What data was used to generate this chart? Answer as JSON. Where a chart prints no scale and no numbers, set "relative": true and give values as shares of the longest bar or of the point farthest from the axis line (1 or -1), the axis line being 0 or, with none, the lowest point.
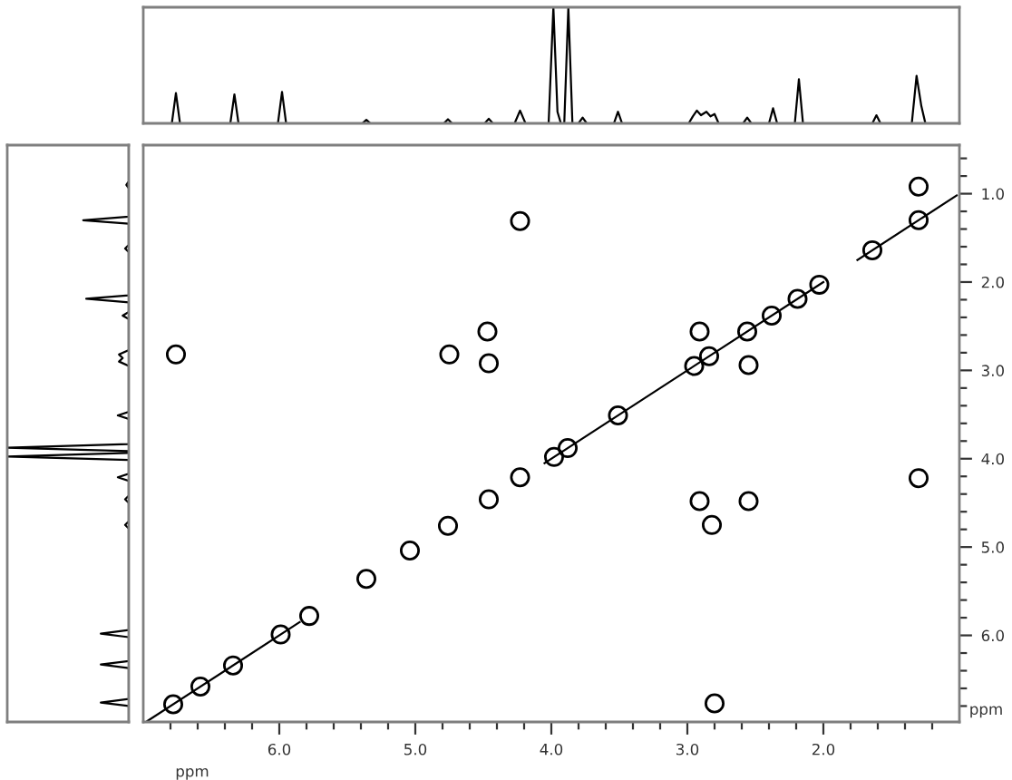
{
  "chart_data": [
    {
      "type": "line",
      "relative": true,
      "xlim": [
        7.0,
        1.0
      ],
      "tick_labels": false,
      "series": [
        {
          "color": "#000000",
          "x": [
            7.0,
            6.79,
            6.76,
            6.73,
            6.36,
            6.33,
            6.3,
            6.01,
            5.98,
            5.95,
            5.39,
            5.36,
            5.33,
            4.79,
            4.76,
            4.73,
            4.49,
            4.46,
            4.43,
            4.27,
            4.23,
            4.19,
            4.02,
            3.985,
            3.955,
            3.93,
            3.905,
            3.875,
            3.845,
            3.8,
            3.77,
            3.74,
            3.54,
            3.51,
            3.48,
            2.99,
            2.96,
            2.93,
            2.9,
            2.86,
            2.83,
            2.8,
            2.77,
            2.59,
            2.56,
            2.53,
            2.4,
            2.37,
            2.34,
            2.21,
            2.18,
            2.15,
            1.64,
            1.61,
            1.58,
            1.35,
            1.315,
            1.28,
            1.25,
            1.0
          ],
          "values": [
            0,
            0,
            0.26,
            0,
            0,
            0.25,
            0,
            0,
            0.27,
            0,
            0,
            0.03,
            0,
            0,
            0.035,
            0,
            0,
            0.04,
            0,
            0,
            0.11,
            0,
            0,
            1,
            0.1,
            0,
            0,
            1,
            0,
            0,
            0.05,
            0,
            0,
            0.1,
            0,
            0,
            0.06,
            0.11,
            0.07,
            0.1,
            0.06,
            0.08,
            0,
            0,
            0.05,
            0,
            0,
            0.13,
            0,
            0,
            0.38,
            0,
            0,
            0.07,
            0,
            0,
            0.41,
            0.15,
            0,
            0
          ]
        }
      ]
    },
    {
      "type": "line",
      "orientation": "horizontal",
      "relative": true,
      "ylim": [
        6.98,
        0.45
      ],
      "tick_labels": false,
      "series": [
        {
          "color": "#000000",
          "x": [
            0.45,
            0.86,
            0.9,
            0.94,
            1.26,
            1.3,
            1.34,
            1.58,
            1.62,
            1.66,
            2.15,
            2.19,
            2.23,
            2.34,
            2.38,
            2.42,
            2.77,
            2.82,
            2.86,
            2.9,
            2.95,
            3.47,
            3.51,
            3.55,
            3.835,
            3.875,
            3.915,
            3.935,
            3.975,
            4.015,
            4.17,
            4.21,
            4.25,
            4.42,
            4.46,
            4.5,
            4.71,
            4.75,
            4.79,
            5.94,
            5.98,
            6.02,
            6.29,
            6.33,
            6.37,
            6.72,
            6.76,
            6.8,
            6.98
          ],
          "values": [
            0,
            0,
            -0.02,
            0,
            0,
            -0.375,
            0,
            0,
            -0.03,
            0,
            0,
            -0.35,
            0,
            0,
            -0.05,
            0,
            0,
            -0.08,
            -0.05,
            -0.08,
            0,
            0,
            -0.09,
            0,
            0,
            -1,
            0,
            0,
            -1,
            0,
            0,
            -0.09,
            0,
            0,
            -0.03,
            0,
            0,
            -0.03,
            0,
            0,
            -0.23,
            0,
            0,
            -0.23,
            0,
            0,
            -0.23,
            0,
            0
          ]
        }
      ]
    },
    {
      "type": "scatter",
      "xlim": [
        7.0,
        1.0
      ],
      "ylim": [
        6.98,
        0.45
      ],
      "xlabel": "ppm",
      "ylabel": "ppm",
      "xticks": [
        {
          "value": 6.8,
          "label": null
        },
        {
          "value": 6.6,
          "label": null
        },
        {
          "value": 6.4,
          "label": null
        },
        {
          "value": 6.2,
          "label": null
        },
        {
          "value": 6,
          "label": "6.0"
        },
        {
          "value": 5.8,
          "label": null
        },
        {
          "value": 5.6,
          "label": null
        },
        {
          "value": 5.4,
          "label": null
        },
        {
          "value": 5.2,
          "label": null
        },
        {
          "value": 5,
          "label": "5.0"
        },
        {
          "value": 4.8,
          "label": null
        },
        {
          "value": 4.6,
          "label": null
        },
        {
          "value": 4.4,
          "label": null
        },
        {
          "value": 4.2,
          "label": null
        },
        {
          "value": 4,
          "label": "4.0"
        },
        {
          "value": 3.8,
          "label": null
        },
        {
          "value": 3.6,
          "label": null
        },
        {
          "value": 3.4,
          "label": null
        },
        {
          "value": 3.2,
          "label": null
        },
        {
          "value": 3,
          "label": "3.0"
        },
        {
          "value": 2.8,
          "label": null
        },
        {
          "value": 2.6,
          "label": null
        },
        {
          "value": 2.4,
          "label": null
        },
        {
          "value": 2.2,
          "label": null
        },
        {
          "value": 2,
          "label": "2.0"
        },
        {
          "value": 1.8,
          "label": null
        },
        {
          "value": 1.6,
          "label": null
        },
        {
          "value": 1.4,
          "label": null
        },
        {
          "value": 1.2,
          "label": null
        }
      ],
      "yticks": [
        {
          "value": 0.6,
          "label": null
        },
        {
          "value": 0.8,
          "label": null
        },
        {
          "value": 1,
          "label": "1.0"
        },
        {
          "value": 1.2,
          "label": null
        },
        {
          "value": 1.4,
          "label": null
        },
        {
          "value": 1.6,
          "label": null
        },
        {
          "value": 1.8,
          "label": null
        },
        {
          "value": 2,
          "label": "2.0"
        },
        {
          "value": 2.2,
          "label": null
        },
        {
          "value": 2.4,
          "label": null
        },
        {
          "value": 2.6,
          "label": null
        },
        {
          "value": 2.8,
          "label": null
        },
        {
          "value": 3,
          "label": "3.0"
        },
        {
          "value": 3.2,
          "label": null
        },
        {
          "value": 3.4,
          "label": null
        },
        {
          "value": 3.6,
          "label": null
        },
        {
          "value": 3.8,
          "label": null
        },
        {
          "value": 4,
          "label": "4.0"
        },
        {
          "value": 4.2,
          "label": null
        },
        {
          "value": 4.4,
          "label": null
        },
        {
          "value": 4.6,
          "label": null
        },
        {
          "value": 4.8,
          "label": null
        },
        {
          "value": 5,
          "label": "5.0"
        },
        {
          "value": 5.2,
          "label": null
        },
        {
          "value": 5.4,
          "label": null
        },
        {
          "value": 5.6,
          "label": null
        },
        {
          "value": 5.8,
          "label": null
        },
        {
          "value": 6,
          "label": "6.0"
        },
        {
          "value": 6.2,
          "label": null
        },
        {
          "value": 6.4,
          "label": null
        },
        {
          "value": 6.6,
          "label": null
        },
        {
          "value": 6.8,
          "label": null
        }
      ],
      "series": [
        {
          "type": "line",
          "color": "#000000",
          "marker": "none",
          "x": [
            6.97,
            5.85,
            5.0,
            4.05,
            2.0,
            1.9,
            1.75,
            1.02
          ],
          "values": [
            6.97,
            5.85,
            null,
            4.05,
            2.0,
            null,
            1.75,
            1.02
          ]
        },
        {
          "type": "scatter",
          "color": "#000000",
          "marker": "circle",
          "x": [
            6.78,
            6.58,
            6.34,
            5.99,
            5.78,
            5.36,
            5.04,
            4.76,
            4.46,
            4.23,
            3.98,
            3.88,
            3.51,
            2.95,
            2.84,
            2.56,
            2.38,
            2.19,
            2.03,
            1.64,
            1.3,
            4.23,
            1.3,
            4.47,
            2.55,
            4.75,
            2.82,
            4.46,
            2.91,
            6.76,
            2.8,
            2.91,
            2.55,
            1.3
          ],
          "values": [
            6.78,
            6.58,
            6.34,
            5.99,
            5.78,
            5.36,
            5.04,
            4.76,
            4.46,
            4.21,
            3.98,
            3.88,
            3.51,
            2.95,
            2.84,
            2.56,
            2.38,
            2.19,
            2.03,
            1.64,
            1.3,
            1.31,
            4.22,
            2.56,
            4.48,
            2.82,
            4.75,
            2.92,
            4.48,
            2.82,
            6.77,
            2.56,
            2.94,
            0.92
          ]
        }
      ]
    }
  ]
}
